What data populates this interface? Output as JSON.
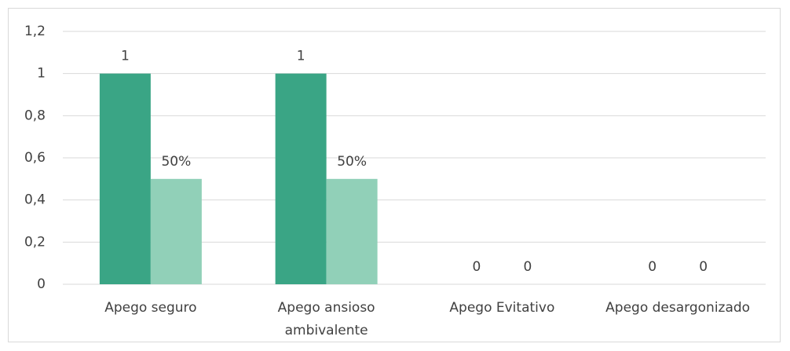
{
  "chart_data": {
    "type": "bar",
    "categories": [
      "Apego seguro",
      "Apego ansioso ambivalente",
      "Apego Evitativo",
      "Apego desargonizado"
    ],
    "series": [
      {
        "color": "#3aa585",
        "values": [
          1,
          1,
          0,
          0
        ]
      },
      {
        "color": "#91d0b8",
        "values": [
          0.5,
          0.5,
          0,
          0
        ],
        "value_labels": [
          "50%",
          "50%",
          "0",
          "0"
        ]
      }
    ],
    "ylim": [
      0,
      1.2
    ],
    "yticks": [
      0,
      {
        "value": 0.2,
        "label": "0,2"
      },
      {
        "value": 0.4,
        "label": "0,4"
      },
      {
        "value": 0.6,
        "label": "0,6"
      },
      {
        "value": 0.8,
        "label": "0,8"
      },
      1,
      {
        "value": 1.2,
        "label": "1,2"
      }
    ],
    "grid": true
  }
}
